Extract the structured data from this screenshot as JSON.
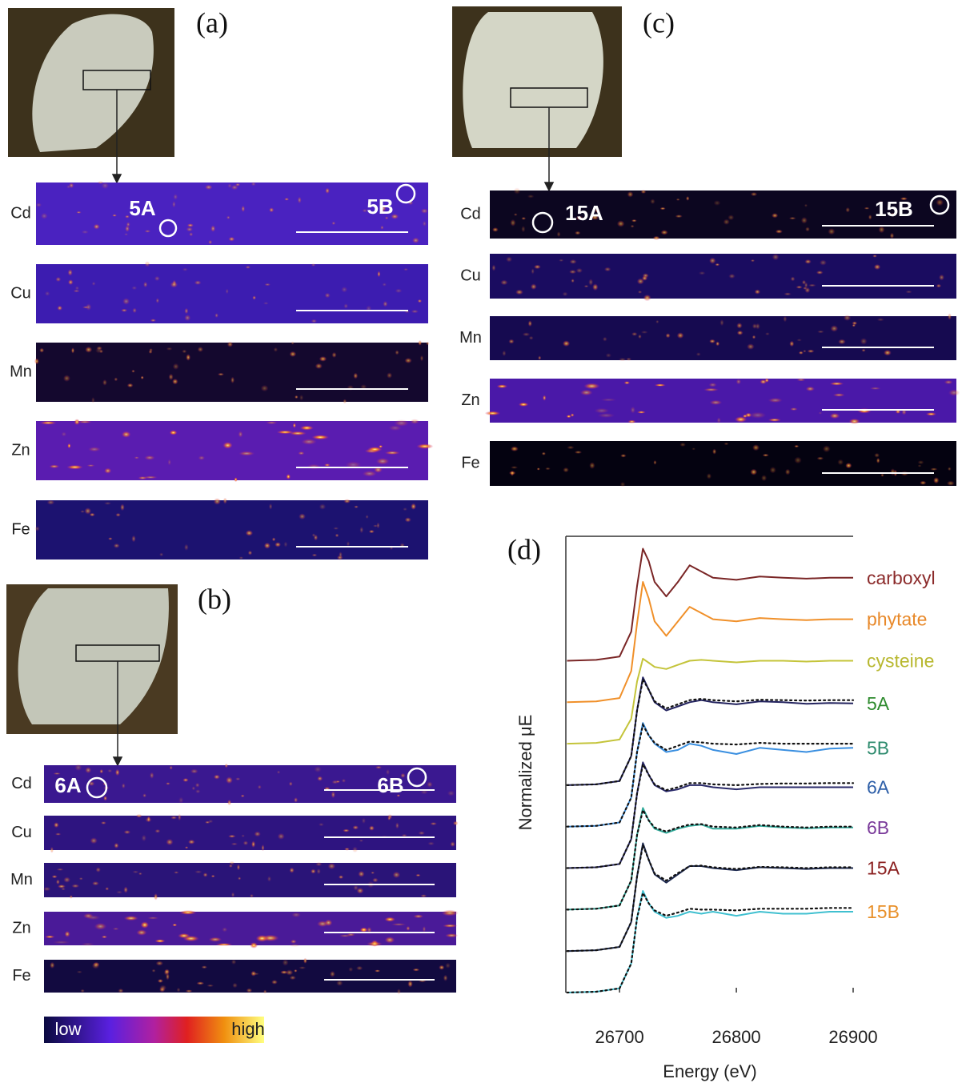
{
  "panels": [
    {
      "label": "(a)",
      "maps": [
        "Cd",
        "Cu",
        "Mn",
        "Zn",
        "Fe"
      ],
      "spots": [
        "5A",
        "5B"
      ]
    },
    {
      "label": "(b)",
      "maps": [
        "Cd",
        "Cu",
        "Mn",
        "Zn",
        "Fe"
      ],
      "spots": [
        "6A",
        "6B"
      ]
    },
    {
      "label": "(c)",
      "maps": [
        "Cd",
        "Cu",
        "Mn",
        "Zn",
        "Fe"
      ],
      "spots": [
        "15A",
        "15B"
      ]
    }
  ],
  "colorbar": {
    "low": "low",
    "high": "high"
  },
  "chart_data": {
    "type": "line",
    "label": "(d)",
    "x_label": "Energy (eV)",
    "y_label": "Normalized μE",
    "x": [
      26655,
      26680,
      26700,
      26710,
      26715,
      26720,
      26725,
      26730,
      26740,
      26750,
      26760,
      26770,
      26780,
      26800,
      26820,
      26840,
      26860,
      26880,
      26900
    ],
    "xlim": [
      26654,
      26900
    ],
    "xticks": [
      26700,
      26800,
      26900
    ],
    "ylim": [
      0,
      11
    ],
    "series": [
      {
        "name": "carboxyl",
        "color": "#7a2626",
        "label_color": "#8b2a2a",
        "values": [
          8,
          8.02,
          8.1,
          8.7,
          9.8,
          10.7,
          10.4,
          9.9,
          9.55,
          9.9,
          10.3,
          10.15,
          10,
          9.95,
          10.03,
          10,
          9.98,
          10,
          10
        ]
      },
      {
        "name": "phytate",
        "color": "#f0902a",
        "label_color": "#e8892a",
        "values": [
          7,
          7.02,
          7.1,
          7.75,
          8.9,
          9.9,
          9.5,
          8.95,
          8.6,
          8.95,
          9.3,
          9.15,
          9,
          8.95,
          9.03,
          9,
          8.98,
          9,
          9
        ]
      },
      {
        "name": "cysteine",
        "color": "#c4c43a",
        "label_color": "#b8b830",
        "values": [
          6,
          6.02,
          6.1,
          6.6,
          7.5,
          8.05,
          7.95,
          7.85,
          7.8,
          7.9,
          8,
          8.02,
          8,
          7.96,
          8,
          8,
          7.98,
          8,
          8
        ]
      },
      {
        "name": "5A",
        "color": "#22225e",
        "label_color": "#2e8b2e",
        "values": [
          5,
          5.02,
          5.1,
          5.7,
          6.8,
          7.6,
          7.3,
          7,
          6.8,
          6.9,
          7,
          7.05,
          7,
          6.95,
          7.02,
          7,
          6.96,
          6.98,
          6.97
        ],
        "fit": [
          5,
          5.02,
          5.1,
          5.7,
          6.8,
          7.55,
          7.3,
          7.02,
          6.85,
          6.95,
          7.05,
          7.08,
          7.05,
          7.02,
          7.06,
          7.05,
          7.04,
          7.05,
          7.05
        ]
      },
      {
        "name": "5B",
        "color": "#3a8fe0",
        "label_color": "#2e8b6e",
        "values": [
          4,
          4.02,
          4.1,
          4.7,
          5.8,
          6.5,
          6.2,
          6,
          5.8,
          5.85,
          6,
          5.95,
          5.85,
          5.75,
          5.9,
          5.85,
          5.8,
          5.88,
          5.9
        ],
        "fit": [
          4,
          4.02,
          4.1,
          4.7,
          5.8,
          6.45,
          6.2,
          6.02,
          5.85,
          5.95,
          6.05,
          6.03,
          6,
          5.98,
          6.02,
          6,
          6,
          6,
          6
        ]
      },
      {
        "name": "6A",
        "color": "#2a2a6a",
        "label_color": "#2e5fa8",
        "values": [
          3,
          3.02,
          3.1,
          3.7,
          4.8,
          5.55,
          5.25,
          5,
          4.85,
          4.9,
          5,
          5,
          4.95,
          4.9,
          4.95,
          4.95,
          4.95,
          4.95,
          4.95
        ],
        "fit": [
          3,
          3.02,
          3.1,
          3.7,
          4.8,
          5.5,
          5.25,
          5.02,
          4.88,
          4.95,
          5.05,
          5.05,
          5.02,
          5,
          5.03,
          5.04,
          5.04,
          5.05,
          5.05
        ]
      },
      {
        "name": "6B",
        "color": "#30a898",
        "label_color": "#7a3a9a",
        "values": [
          2,
          2.02,
          2.1,
          2.7,
          3.8,
          4.45,
          4.15,
          3.95,
          3.85,
          3.95,
          4.02,
          4.05,
          3.95,
          3.95,
          4.02,
          3.98,
          3.96,
          3.98,
          3.98
        ],
        "fit": [
          2,
          2.02,
          2.1,
          2.7,
          3.8,
          4.4,
          4.15,
          3.98,
          3.88,
          3.98,
          4.05,
          4.06,
          4,
          3.98,
          4.04,
          4,
          3.98,
          4,
          4
        ]
      },
      {
        "name": "15A",
        "color": "#1e2a50",
        "label_color": "#8b2020",
        "values": [
          1,
          1.02,
          1.1,
          1.7,
          2.8,
          3.6,
          3.2,
          2.85,
          2.65,
          2.85,
          3.05,
          3.05,
          3,
          2.95,
          3.02,
          3,
          2.98,
          3,
          3
        ],
        "fit": [
          1,
          1.02,
          1.1,
          1.7,
          2.8,
          3.55,
          3.2,
          2.87,
          2.7,
          2.88,
          3.05,
          3.06,
          3.02,
          2.98,
          3.03,
          3.02,
          3,
          3.02,
          3.02
        ]
      },
      {
        "name": "15B",
        "color": "#40c0d0",
        "label_color": "#e8902a",
        "values": [
          0,
          0.02,
          0.1,
          0.7,
          1.8,
          2.45,
          2.15,
          1.95,
          1.8,
          1.85,
          1.95,
          1.9,
          1.95,
          1.85,
          1.95,
          1.9,
          1.9,
          1.95,
          1.95
        ],
        "fit": [
          0,
          0.02,
          0.1,
          0.7,
          1.8,
          2.4,
          2.15,
          1.98,
          1.85,
          1.93,
          2.02,
          2,
          2,
          1.98,
          2.02,
          2.02,
          2.02,
          2.04,
          2.04
        ]
      }
    ]
  }
}
